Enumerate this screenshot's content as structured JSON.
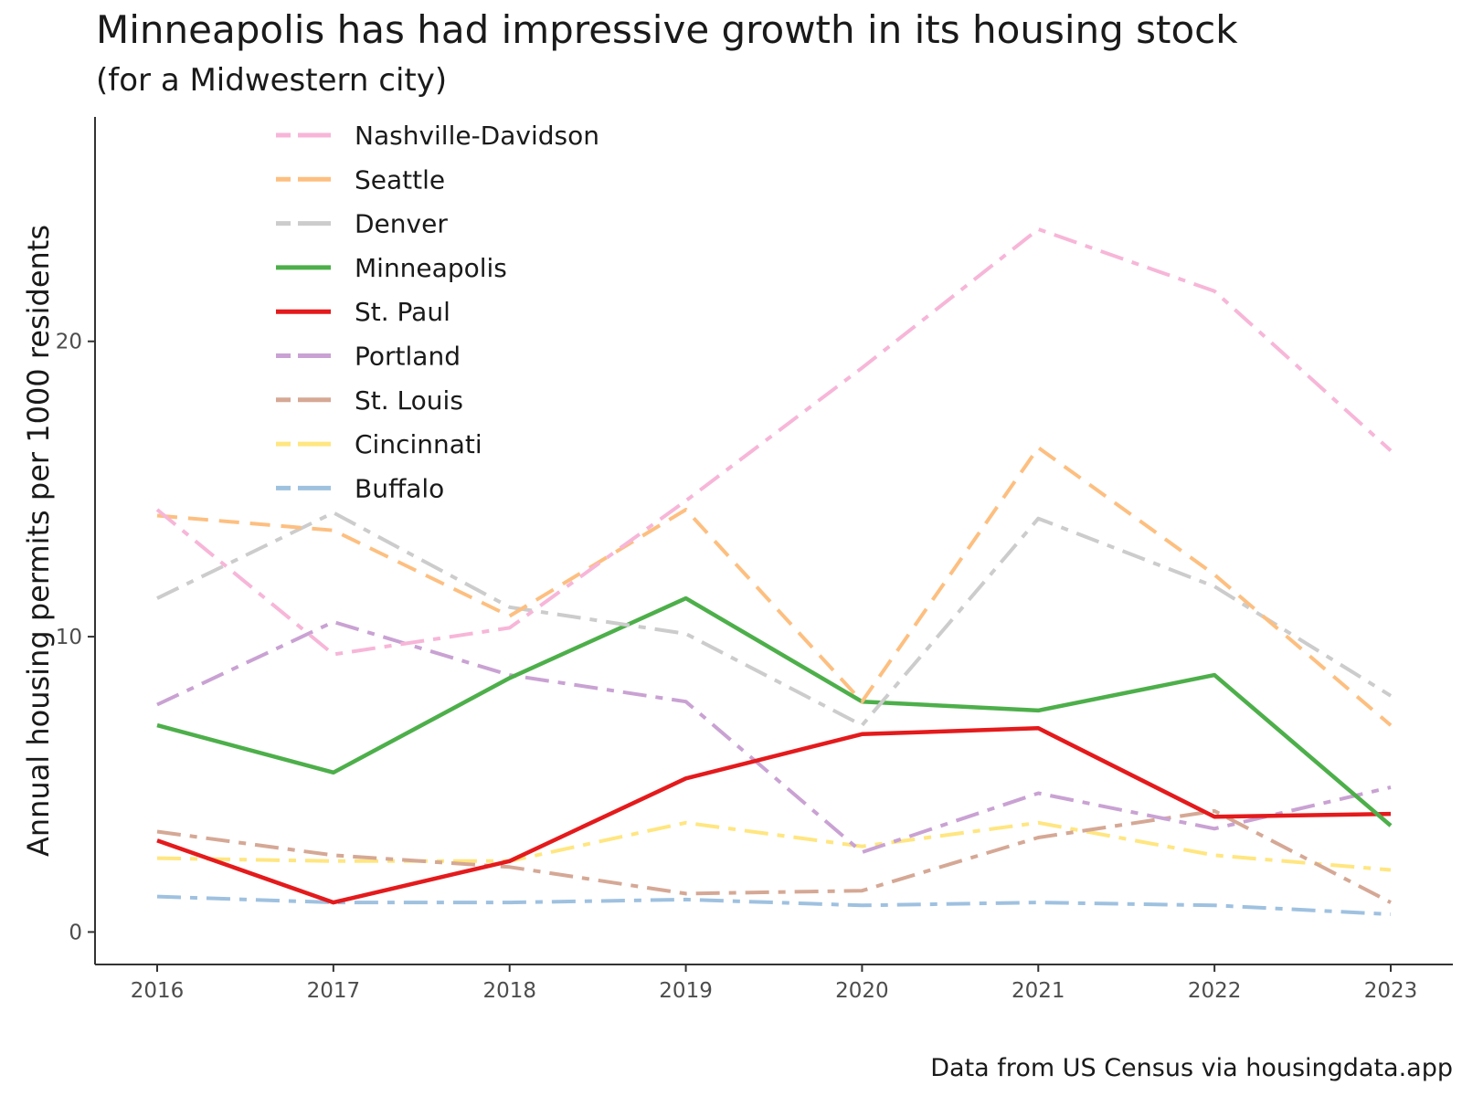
{
  "chart_data": {
    "type": "line",
    "title": "Minneapolis has had impressive growth in its housing stock",
    "subtitle": "(for a Midwestern city)",
    "caption": "Data from US Census via housingdata.app",
    "xlabel": "",
    "ylabel": "Annual housing permits per 1000 residents",
    "x": [
      2016,
      2017,
      2018,
      2019,
      2020,
      2021,
      2022,
      2023
    ],
    "xticks": [
      "2016",
      "2017",
      "2018",
      "2019",
      "2020",
      "2021",
      "2022",
      "2023"
    ],
    "yticks": [
      "0",
      "10",
      "20"
    ],
    "ylim": [
      -1.1,
      27.6
    ],
    "grid": false,
    "legend_position": "top-left",
    "series": [
      {
        "name": "Nashville-Davidson",
        "color": "#f7b6d8",
        "linestyle": "dash-dot",
        "values": [
          14.3,
          9.4,
          10.3,
          14.6,
          19.1,
          23.8,
          21.7,
          16.3
        ]
      },
      {
        "name": "Seattle",
        "color": "#fdbf80",
        "linestyle": "dashed",
        "values": [
          14.1,
          13.6,
          10.7,
          14.3,
          7.8,
          16.4,
          12.1,
          7.0
        ]
      },
      {
        "name": "Denver",
        "color": "#cccccc",
        "linestyle": "dash-dot",
        "values": [
          11.3,
          14.2,
          11.0,
          10.1,
          7.0,
          14.0,
          11.7,
          8.0
        ]
      },
      {
        "name": "Minneapolis",
        "color": "#4daf4a",
        "linestyle": "solid",
        "values": [
          7.0,
          5.4,
          8.6,
          11.3,
          7.8,
          7.5,
          8.7,
          3.6
        ]
      },
      {
        "name": "St. Paul",
        "color": "#e41a1c",
        "linestyle": "solid",
        "values": [
          3.1,
          1.0,
          2.4,
          5.2,
          6.7,
          6.9,
          3.9,
          4.0
        ]
      },
      {
        "name": "Portland",
        "color": "#c9a2d3",
        "linestyle": "dash-dot",
        "values": [
          7.7,
          10.5,
          8.7,
          7.8,
          2.7,
          4.7,
          3.5,
          4.9
        ]
      },
      {
        "name": "St. Louis",
        "color": "#d5a895",
        "linestyle": "dash-dot",
        "values": [
          3.4,
          2.6,
          2.2,
          1.3,
          1.4,
          3.2,
          4.1,
          1.0
        ]
      },
      {
        "name": "Cincinnati",
        "color": "#ffe680",
        "linestyle": "dash-dot",
        "values": [
          2.5,
          2.4,
          2.4,
          3.7,
          2.9,
          3.7,
          2.6,
          2.1
        ]
      },
      {
        "name": "Buffalo",
        "color": "#9fc1e0",
        "linestyle": "dash-dot",
        "values": [
          1.2,
          1.0,
          1.0,
          1.1,
          0.9,
          1.0,
          0.9,
          0.6
        ]
      }
    ]
  }
}
